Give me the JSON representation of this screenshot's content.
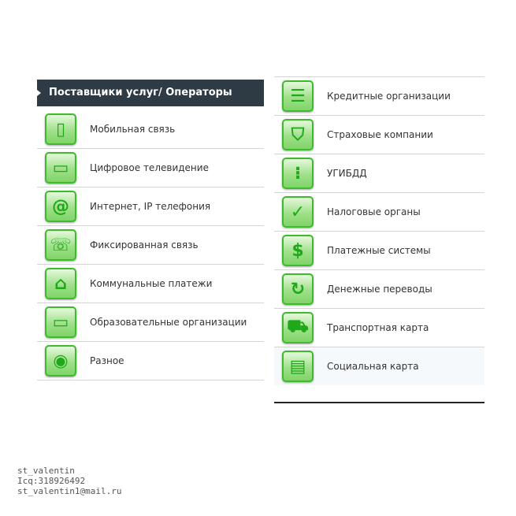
{
  "left": {
    "title": "Поставщики услуг/ Операторы",
    "items": [
      {
        "label": "Мобильная связь",
        "icon": "mobile-phone-icon",
        "glyph": "▯"
      },
      {
        "label": "Цифровое телевидение",
        "icon": "tv-icon",
        "glyph": "▭"
      },
      {
        "label": "Интернет, IP телефония",
        "icon": "internet-phone-icon",
        "glyph": "@"
      },
      {
        "label": "Фиксированная связь",
        "icon": "landline-phone-icon",
        "glyph": "☏"
      },
      {
        "label": "Коммунальные платежи",
        "icon": "house-icon",
        "glyph": "⌂"
      },
      {
        "label": "Образовательные организации",
        "icon": "briefcase-icon",
        "glyph": "▭"
      },
      {
        "label": "Разное",
        "icon": "target-icon",
        "glyph": "◉"
      }
    ]
  },
  "right": {
    "items": [
      {
        "label": "Кредитные организации",
        "icon": "chat-bubbles-icon",
        "glyph": "☰"
      },
      {
        "label": "Страховые компании",
        "icon": "shield-icon",
        "glyph": "⛉"
      },
      {
        "label": "УГИБДД",
        "icon": "traffic-light-icon",
        "glyph": "⁝"
      },
      {
        "label": "Налоговые органы",
        "icon": "tax-icon",
        "glyph": "✓"
      },
      {
        "label": "Платежные системы",
        "icon": "dollar-icon",
        "glyph": "$"
      },
      {
        "label": "Денежные переводы",
        "icon": "money-transfer-icon",
        "glyph": "↻"
      },
      {
        "label": "Транспортная карта",
        "icon": "car-icon",
        "glyph": "⛟"
      },
      {
        "label": "Социальная карта",
        "icon": "id-card-icon",
        "glyph": "▤"
      }
    ]
  },
  "footer": {
    "line1": "st_valentin",
    "line2": "Icq:318926492",
    "line3": "st_valentin1@mail.ru"
  }
}
